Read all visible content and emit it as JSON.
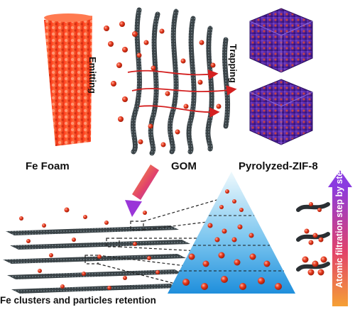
{
  "labels": {
    "fe_foam": "Fe Foam",
    "gom": "GOM",
    "zif": "Pyrolyzed-ZIF-8",
    "emitting": "Emitting",
    "trapping": "Trapping",
    "retention": "Fe clusters and particles retention",
    "atomic_filtration": "Atomic filtration step by step"
  },
  "colors": {
    "particle": "#e83a1e",
    "foam": "#ff5a2a",
    "gom_sheet": "#3a4347",
    "zif_body": "#5a2aa8",
    "pyramid_top": "#e4f4fb",
    "pyramid_bottom": "#2a9be0",
    "arrow_top": "#b03cd8",
    "arrow_bottom": "#f08a30"
  }
}
